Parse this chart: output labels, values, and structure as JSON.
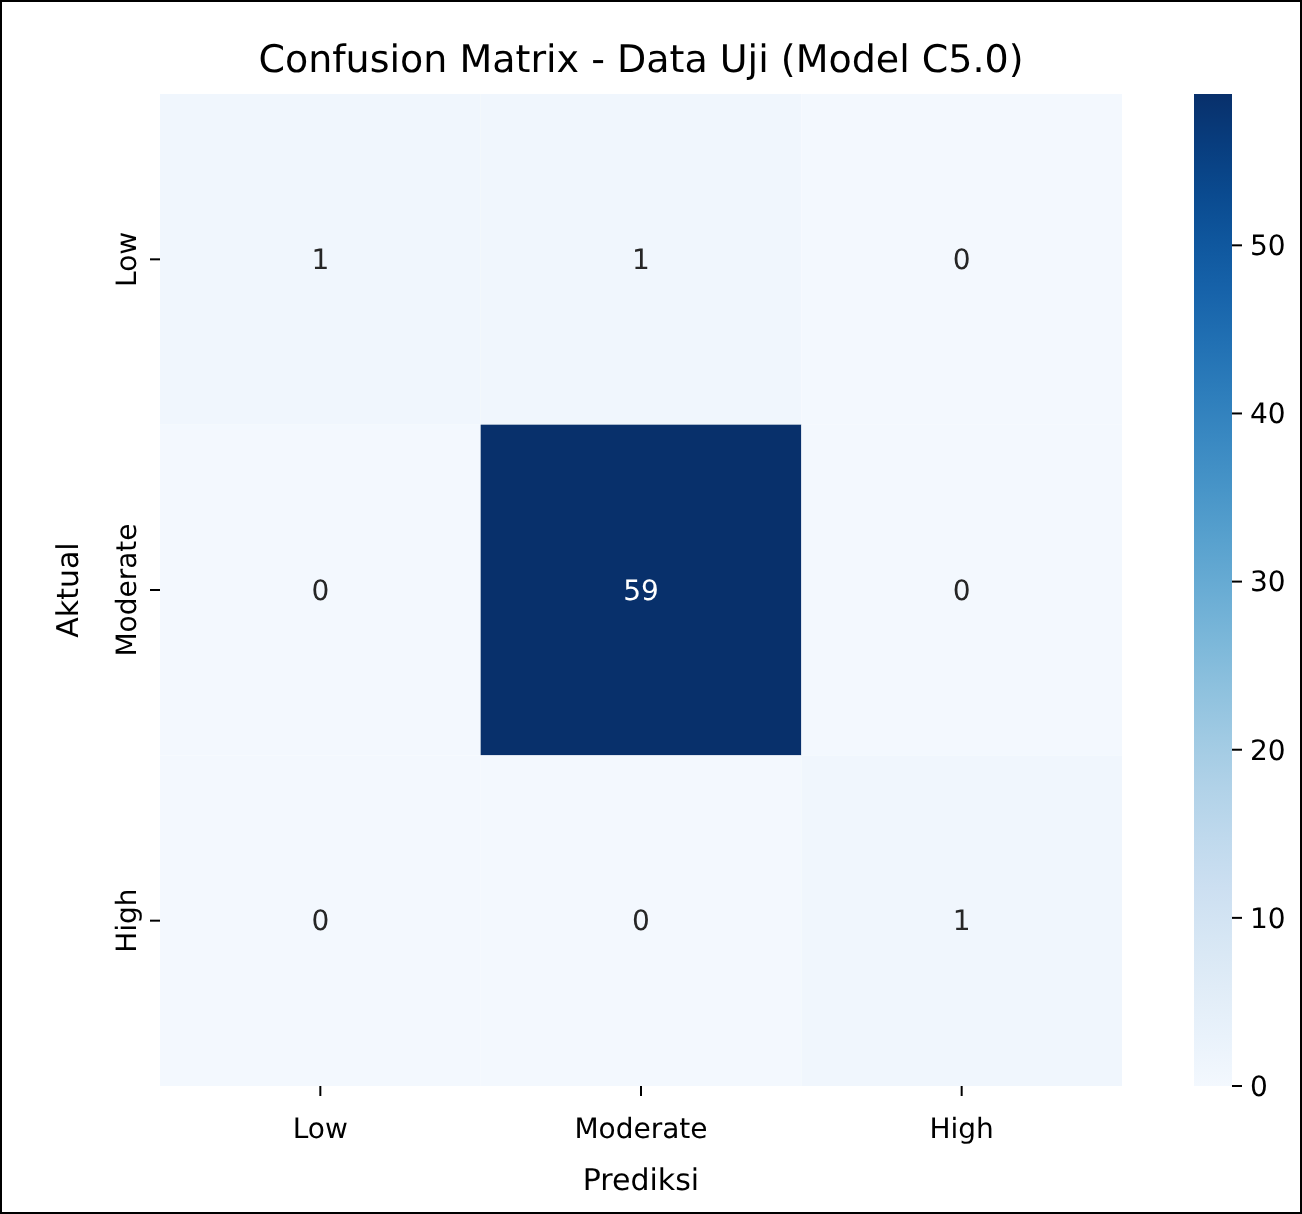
{
  "chart_data": {
    "type": "heatmap",
    "title": "Confusion Matrix - Data Uji (Model C5.0)",
    "xlabel": "Prediksi",
    "ylabel": "Aktual",
    "categories": [
      "Low",
      "Moderate",
      "High"
    ],
    "y_categories": [
      "Low",
      "Moderate",
      "High"
    ],
    "cells": [
      [
        1,
        1,
        0
      ],
      [
        0,
        59,
        0
      ],
      [
        0,
        0,
        1
      ]
    ],
    "clim": [
      0,
      59
    ],
    "cticks": [
      0,
      10,
      20,
      30,
      40,
      50
    ],
    "data_labels": true
  }
}
